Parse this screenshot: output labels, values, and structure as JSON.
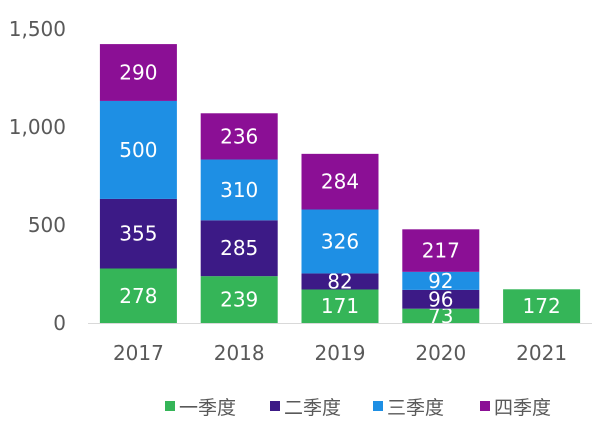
{
  "chart_data": {
    "type": "bar",
    "stacked": true,
    "title": "",
    "xlabel": "",
    "ylabel": "",
    "categories": [
      "2017",
      "2018",
      "2019",
      "2020",
      "2021"
    ],
    "ylim": [
      0,
      1500
    ],
    "yticks": [
      0,
      500,
      1000,
      1500
    ],
    "ytick_labels": [
      "0",
      "500",
      "1,000",
      "1,500"
    ],
    "grid": false,
    "legend_position": "bottom",
    "series": [
      {
        "name": "一季度",
        "color": "#35b558",
        "values": [
          278,
          239,
          171,
          73,
          172
        ]
      },
      {
        "name": "二季度",
        "color": "#3c1a86",
        "values": [
          355,
          285,
          82,
          96,
          null
        ]
      },
      {
        "name": "三季度",
        "color": "#1e8fe4",
        "values": [
          500,
          310,
          326,
          92,
          null
        ]
      },
      {
        "name": "四季度",
        "color": "#8b0f95",
        "values": [
          290,
          236,
          284,
          217,
          null
        ]
      }
    ]
  }
}
